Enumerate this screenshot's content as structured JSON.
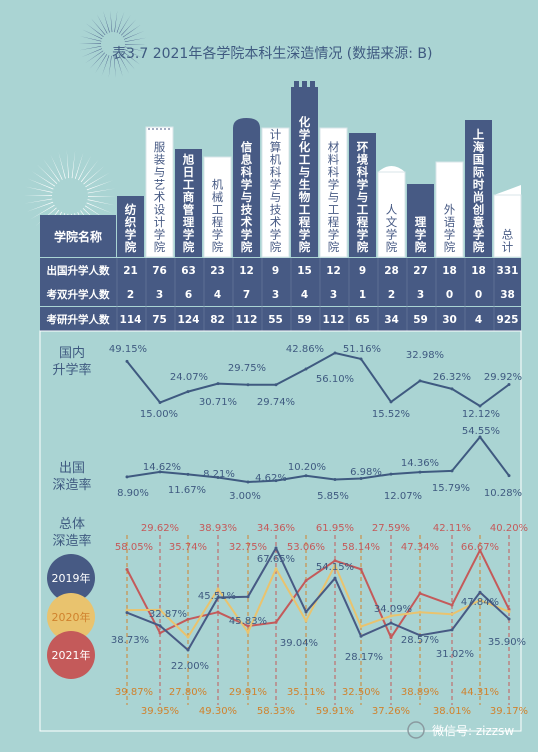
{
  "title": "表3.7  2021年各学院本科生深造情况 (数据来源: B)",
  "header_label": "学院名称",
  "row_labels": {
    "abroad": "出国升学人数",
    "dual": "考双升学人数",
    "exam": "考研升学人数"
  },
  "colleges": [
    {
      "name": "纺织学院",
      "abroad": "21",
      "dual": "2",
      "exam": "114"
    },
    {
      "name": "服装与艺术设计学院",
      "abroad": "76",
      "dual": "3",
      "exam": "75"
    },
    {
      "name": "旭日工商管理学院",
      "abroad": "63",
      "dual": "6",
      "exam": "124"
    },
    {
      "name": "机械工程学院",
      "abroad": "23",
      "dual": "4",
      "exam": "82"
    },
    {
      "name": "信息科学与技术学院",
      "abroad": "12",
      "dual": "7",
      "exam": "112"
    },
    {
      "name": "计算机科学与技术学院",
      "abroad": "9",
      "dual": "3",
      "exam": "55"
    },
    {
      "name": "化学化工与生物工程学院",
      "abroad": "15",
      "dual": "4",
      "exam": "59"
    },
    {
      "name": "材料科学与工程学院",
      "abroad": "12",
      "dual": "3",
      "exam": "112"
    },
    {
      "name": "环境科学与工程学院",
      "abroad": "9",
      "dual": "1",
      "exam": "65"
    },
    {
      "name": "人文学院",
      "abroad": "28",
      "dual": "2",
      "exam": "34"
    },
    {
      "name": "理学院",
      "abroad": "27",
      "dual": "3",
      "exam": "59"
    },
    {
      "name": "外语学院",
      "abroad": "18",
      "dual": "0",
      "exam": "30"
    },
    {
      "name": "上海国际时尚创意学院",
      "abroad": "18",
      "dual": "0",
      "exam": "4"
    },
    {
      "name": "总计",
      "abroad": "331",
      "dual": "38",
      "exam": "925"
    }
  ],
  "colors": {
    "background": "#aad4d3",
    "navy": "#475a84",
    "line": "#3f5a80",
    "year_2019": "#475a84",
    "year_2020": "#e9c36e",
    "year_2021": "#c45a5a",
    "label_2019": "#3f5a80",
    "label_2020": "#d0822d",
    "label_2021": "#c45a5a"
  },
  "chart_data": [
    {
      "type": "line",
      "title": "国内升学率",
      "categories": [
        "纺织学院",
        "服装与艺术设计学院",
        "旭日工商管理学院",
        "机械工程学院",
        "信息科学与技术学院",
        "计算机科学与技术学院",
        "化学化工与生物工程学院",
        "材料科学与工程学院",
        "环境科学与工程学院",
        "人文学院",
        "理学院",
        "外语学院",
        "上海国际时尚创意学院",
        "总计"
      ],
      "values": [
        49.15,
        15.0,
        24.07,
        30.71,
        29.75,
        29.74,
        42.86,
        56.1,
        51.16,
        15.52,
        32.98,
        26.32,
        12.12,
        29.92
      ],
      "labels": [
        "49.15%",
        "15.00%",
        "24.07%",
        "30.71%",
        "29.75%",
        "29.74%",
        "42.86%",
        "56.10%",
        "51.16%",
        "15.52%",
        "32.98%",
        "26.32%",
        "12.12%",
        "29.92%"
      ]
    },
    {
      "type": "line",
      "title": "出国深造率",
      "categories": [
        "纺织学院",
        "服装与艺术设计学院",
        "旭日工商管理学院",
        "机械工程学院",
        "信息科学与技术学院",
        "计算机科学与技术学院",
        "化学化工与生物工程学院",
        "材料科学与工程学院",
        "环境科学与工程学院",
        "人文学院",
        "理学院",
        "外语学院",
        "上海国际时尚创意学院",
        "总计"
      ],
      "values": [
        8.9,
        14.62,
        11.67,
        8.21,
        3.0,
        4.62,
        10.2,
        5.85,
        6.98,
        12.07,
        14.36,
        15.79,
        54.55,
        10.28
      ],
      "labels": [
        "8.90%",
        "14.62%",
        "11.67%",
        "8.21%",
        "3.00%",
        "4.62%",
        "10.20%",
        "5.85%",
        "6.98%",
        "12.07%",
        "14.36%",
        "15.79%",
        "54.55%",
        "10.28%"
      ]
    },
    {
      "type": "line",
      "title": "总体深造率",
      "categories": [
        "纺织学院",
        "服装与艺术设计学院",
        "旭日工商管理学院",
        "机械工程学院",
        "信息科学与技术学院",
        "计算机科学与技术学院",
        "化学化工与生物工程学院",
        "材料科学与工程学院",
        "环境科学与工程学院",
        "人文学院",
        "理学院",
        "外语学院",
        "上海国际时尚创意学院",
        "总计"
      ],
      "series": [
        {
          "name": "2019年",
          "values": [
            38.73,
            32.87,
            22.0,
            45.51,
            45.83,
            67.65,
            39.04,
            54.15,
            28.17,
            34.09,
            28.57,
            31.02,
            47.84,
            35.9
          ],
          "labels": [
            "38.73%",
            "32.87%",
            "22.00%",
            "45.51%",
            "45.83%",
            "67.65%",
            "39.04%",
            "54.15%",
            "28.17%",
            "34.09%",
            "28.57%",
            "31.02%",
            "47.84%",
            "35.90%"
          ]
        },
        {
          "name": "2020年",
          "values": [
            39.87,
            39.95,
            27.8,
            49.3,
            29.91,
            58.33,
            35.11,
            59.91,
            32.5,
            37.26,
            38.89,
            38.01,
            44.31,
            39.17
          ],
          "labels": [
            "39.87%",
            "39.95%",
            "27.80%",
            "49.30%",
            "29.91%",
            "58.33%",
            "35.11%",
            "59.91%",
            "32.50%",
            "37.26%",
            "38.89%",
            "38.01%",
            "44.31%",
            "39.17%"
          ]
        },
        {
          "name": "2021年",
          "values": [
            58.05,
            29.62,
            35.74,
            38.93,
            32.75,
            34.36,
            53.06,
            61.95,
            58.14,
            27.59,
            47.34,
            42.11,
            66.67,
            40.2
          ],
          "labels": [
            "58.05%",
            "29.62%",
            "35.74%",
            "38.93%",
            "32.75%",
            "34.36%",
            "53.06%",
            "61.95%",
            "58.14%",
            "27.59%",
            "47.34%",
            "42.11%",
            "66.67%",
            "40.20%"
          ]
        }
      ]
    }
  ],
  "watermark": "微信号: zizzsw"
}
